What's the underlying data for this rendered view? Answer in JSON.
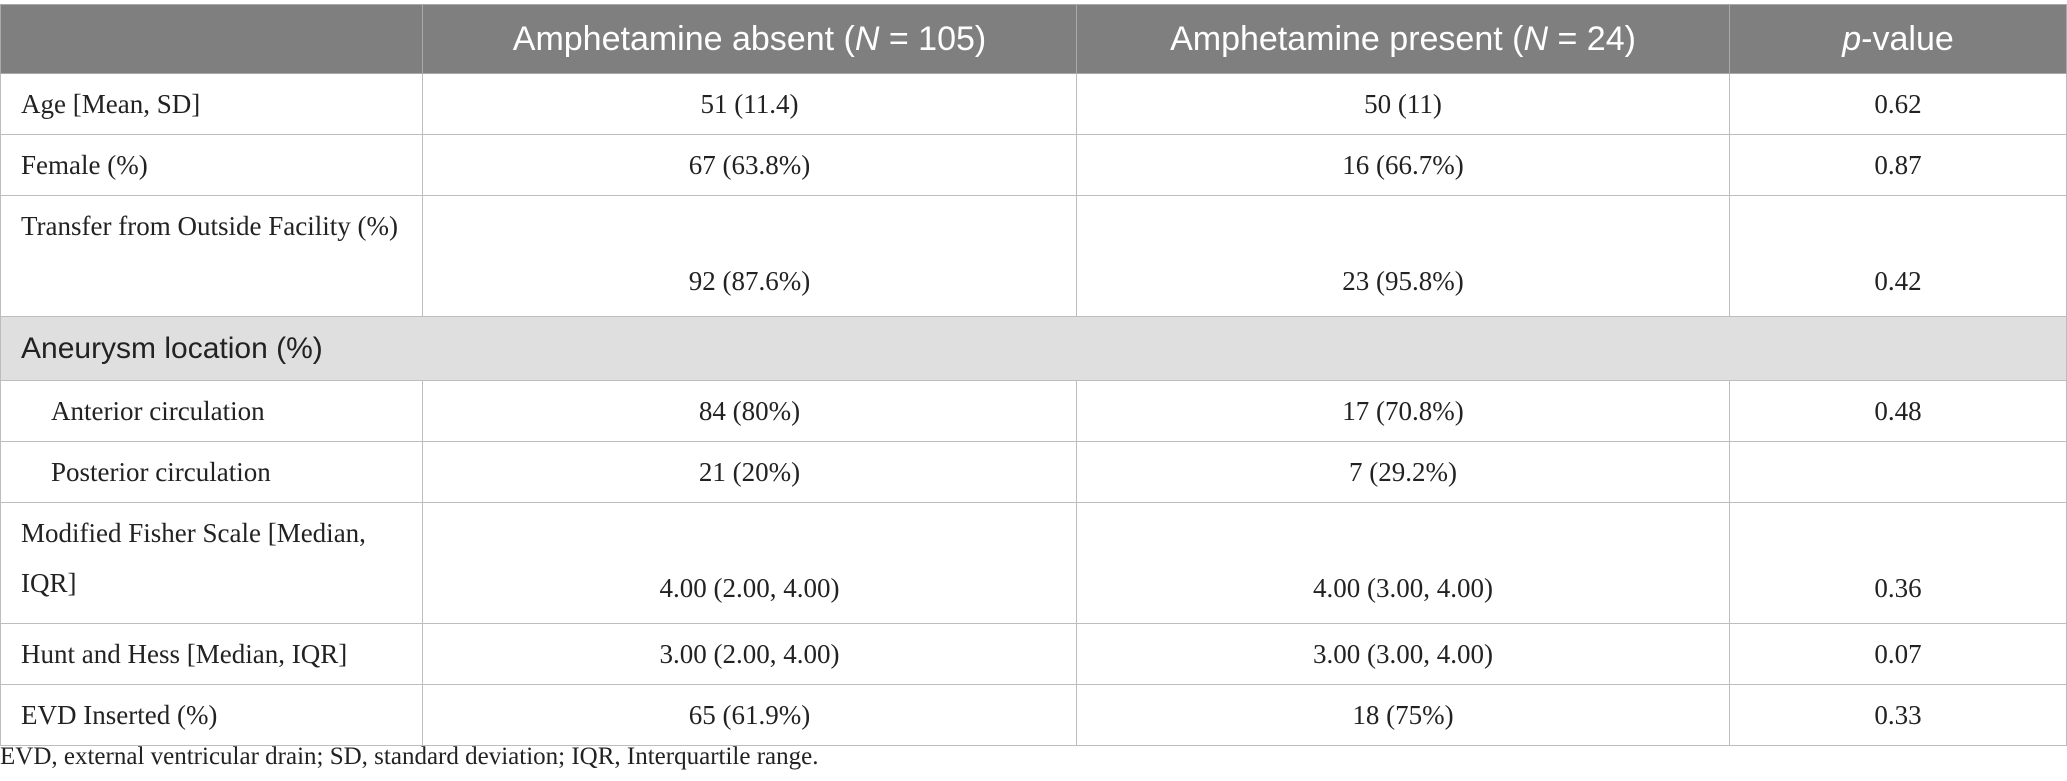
{
  "table": {
    "header": [
      [
        {
          "text": ""
        }
      ],
      [
        {
          "text": "Amphetamine absent ("
        },
        {
          "text": "N",
          "italic": true
        },
        {
          "text": " = 105)"
        }
      ],
      [
        {
          "text": "Amphetamine present ("
        },
        {
          "text": "N",
          "italic": true
        },
        {
          "text": " = 24)"
        }
      ],
      [
        {
          "text": "p",
          "italic": true
        },
        {
          "text": "-value"
        }
      ]
    ],
    "rows": [
      {
        "cells": [
          "Age [Mean, SD]",
          "51 (11.4)",
          "50 (11)",
          "0.62"
        ]
      },
      {
        "cells": [
          "Female (%)",
          "67 (63.8%)",
          "16 (66.7%)",
          "0.87"
        ]
      },
      {
        "cells": [
          "Transfer from Outside Facility (%)",
          "92 (87.6%)",
          "23 (95.8%)",
          "0.42"
        ],
        "tall": true
      },
      {
        "section": "Aneurysm location (%)"
      },
      {
        "cells": [
          "Anterior circulation",
          "84 (80%)",
          "17 (70.8%)",
          "0.48"
        ],
        "indent": true
      },
      {
        "cells": [
          "Posterior circulation",
          "21 (20%)",
          "7 (29.2%)",
          null
        ],
        "indent": true
      },
      {
        "cells": [
          "Modified Fisher Scale [Median, IQR]",
          "4.00 (2.00, 4.00)",
          "4.00 (3.00, 4.00)",
          "0.36"
        ],
        "tall": true
      },
      {
        "cells": [
          "Hunt and Hess [Median, IQR]",
          "3.00 (2.00, 4.00)",
          "3.00 (3.00, 4.00)",
          "0.07"
        ]
      },
      {
        "cells": [
          "EVD Inserted (%)",
          "65 (61.9%)",
          "18 (75%)",
          "0.33"
        ]
      }
    ],
    "footnote": "EVD, external ventricular drain; SD, standard deviation; IQR, Interquartile range."
  }
}
